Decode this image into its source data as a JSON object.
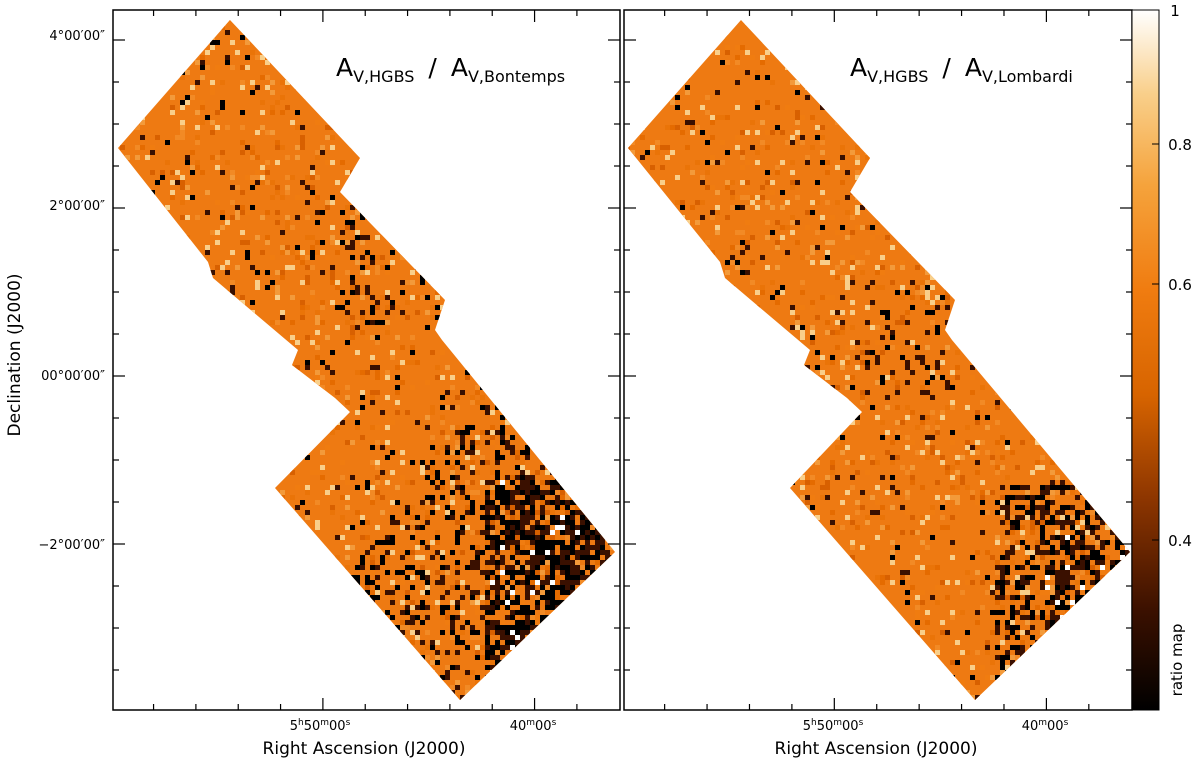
{
  "chart_data": [
    {
      "type": "heatmap",
      "panel": "left",
      "title_main": "A",
      "title_sub_num": "V,HGBS",
      "title_sep": "/",
      "title_den_main": "A",
      "title_sub_den": "V,Bontemps",
      "xlabel": "Right Ascension (J2000)",
      "ylabel": "Declination (J2000)",
      "x_ticks": [
        {
          "label_h": "5",
          "label_m": "50",
          "label_s": "00",
          "unit_h": "h",
          "unit_m": "m",
          "unit_s": "s",
          "ra_deg": 87.5
        },
        {
          "label_m": "40",
          "label_s": "00",
          "unit_m": "m",
          "unit_s": "s",
          "ra_deg": 85.0
        }
      ],
      "y_ticks": [
        "4°00′00″",
        "2°00′00″",
        "00°00′00″",
        "−2°00′00″"
      ],
      "y_tick_values_deg": [
        4,
        2,
        0,
        -2
      ],
      "dark_region_side": "east (right/bottom)",
      "color_scale_range": [
        0.3,
        1.0
      ]
    },
    {
      "type": "heatmap",
      "panel": "right",
      "title_main": "A",
      "title_sub_num": "V,HGBS",
      "title_sep": "/",
      "title_den_main": "A",
      "title_sub_den": "V,Lombardi",
      "xlabel": "Right Ascension (J2000)",
      "x_ticks": [
        {
          "label_h": "5",
          "label_m": "50",
          "label_s": "00",
          "unit_h": "h",
          "unit_m": "m",
          "unit_s": "s",
          "ra_deg": 87.5
        },
        {
          "label_m": "40",
          "label_s": "00",
          "unit_m": "m",
          "unit_s": "s",
          "ra_deg": 85.0
        }
      ],
      "color_scale_range": [
        0.3,
        1.0
      ]
    }
  ],
  "colorbar": {
    "label": "ratio map",
    "ticks": [
      "1",
      "0.8",
      "0.6",
      "0.4"
    ],
    "tick_values": [
      1.0,
      0.8,
      0.6,
      0.4
    ],
    "range": [
      0.3,
      1.0
    ],
    "colors": [
      "#000000",
      "#3a1000",
      "#8c3500",
      "#d76400",
      "#f07c10",
      "#f5a33c",
      "#f9cf8a",
      "#ffffff"
    ]
  }
}
